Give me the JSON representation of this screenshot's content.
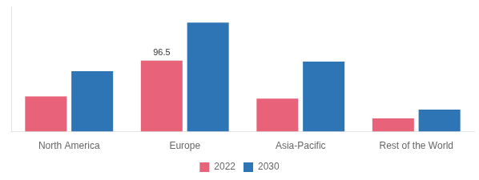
{
  "chart_data": {
    "type": "bar",
    "categories": [
      "North America",
      "Europe",
      "Asia-Pacific",
      "Rest of the World"
    ],
    "series": [
      {
        "name": "2022",
        "color": "#e8637a",
        "values": [
          48,
          96.5,
          45,
          18
        ]
      },
      {
        "name": "2030",
        "color": "#2e75b6",
        "values": [
          82,
          148,
          95,
          30
        ]
      }
    ],
    "annotations": [
      {
        "text": "96.5",
        "category": "Europe",
        "series": "2022"
      }
    ],
    "ylim": [
      0,
      170
    ],
    "grid": false,
    "legend": "bottom",
    "tick_labels": "x"
  }
}
